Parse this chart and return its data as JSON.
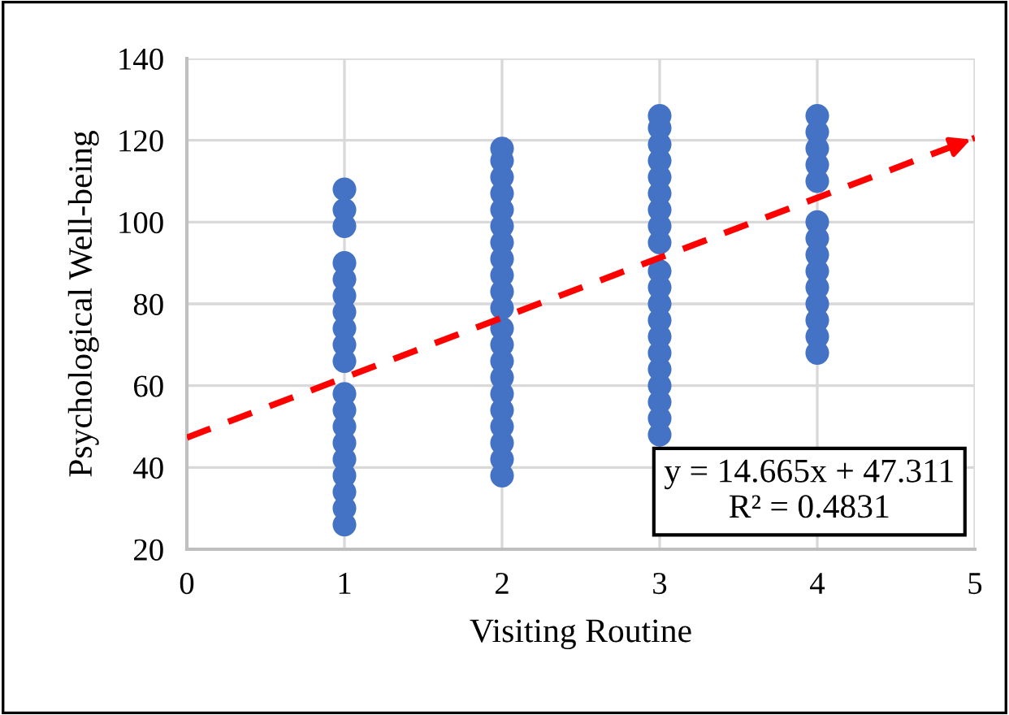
{
  "chart_data": {
    "type": "scatter",
    "xlabel": "Visiting Routine",
    "ylabel": "Psychological Well-being",
    "xlim": [
      0,
      5
    ],
    "xticks": [
      0,
      1,
      2,
      3,
      4,
      5
    ],
    "ylim": [
      20,
      140
    ],
    "yticks": [
      20,
      40,
      60,
      80,
      100,
      120,
      140
    ],
    "grid": true,
    "marker": "circle",
    "annotations": [
      "y = 14.665x + 47.311\nR² = 0.4831"
    ],
    "series": [
      {
        "color": "#4472c4",
        "x": [
          1,
          1,
          1,
          1,
          1,
          1,
          1,
          1,
          1,
          1,
          1,
          1,
          1,
          1,
          1,
          1,
          1,
          1,
          1
        ],
        "values": [
          26,
          30,
          34,
          38,
          42,
          46,
          50,
          54,
          58,
          66,
          70,
          74,
          78,
          82,
          86,
          90,
          99,
          103,
          108
        ]
      },
      {
        "color": "#4472c4",
        "x": [
          2,
          2,
          2,
          2,
          2,
          2,
          2,
          2,
          2,
          2,
          2,
          2,
          2,
          2,
          2,
          2,
          2,
          2,
          2,
          2,
          2
        ],
        "values": [
          38,
          42,
          46,
          50,
          54,
          58,
          62,
          66,
          70,
          74,
          79,
          83,
          87,
          91,
          95,
          99,
          103,
          107,
          111,
          115,
          118
        ]
      },
      {
        "color": "#4472c4",
        "x": [
          3,
          3,
          3,
          3,
          3,
          3,
          3,
          3,
          3,
          3,
          3,
          3,
          3,
          3,
          3,
          3,
          3,
          3,
          3,
          3
        ],
        "values": [
          48,
          52,
          56,
          60,
          64,
          68,
          72,
          76,
          80,
          84,
          88,
          95,
          99,
          103,
          107,
          111,
          115,
          119,
          123,
          126
        ]
      },
      {
        "color": "#4472c4",
        "x": [
          4,
          4,
          4,
          4,
          4,
          4,
          4,
          4,
          4,
          4,
          4,
          4,
          4,
          4
        ],
        "values": [
          68,
          72,
          76,
          80,
          84,
          88,
          92,
          96,
          100,
          110,
          114,
          118,
          122,
          126
        ]
      },
      {
        "type": "line",
        "color": "#ff0000",
        "line_style": "dashed",
        "marker": "none",
        "x": [
          0,
          5
        ],
        "values": [
          47.3,
          120.6
        ]
      }
    ]
  }
}
